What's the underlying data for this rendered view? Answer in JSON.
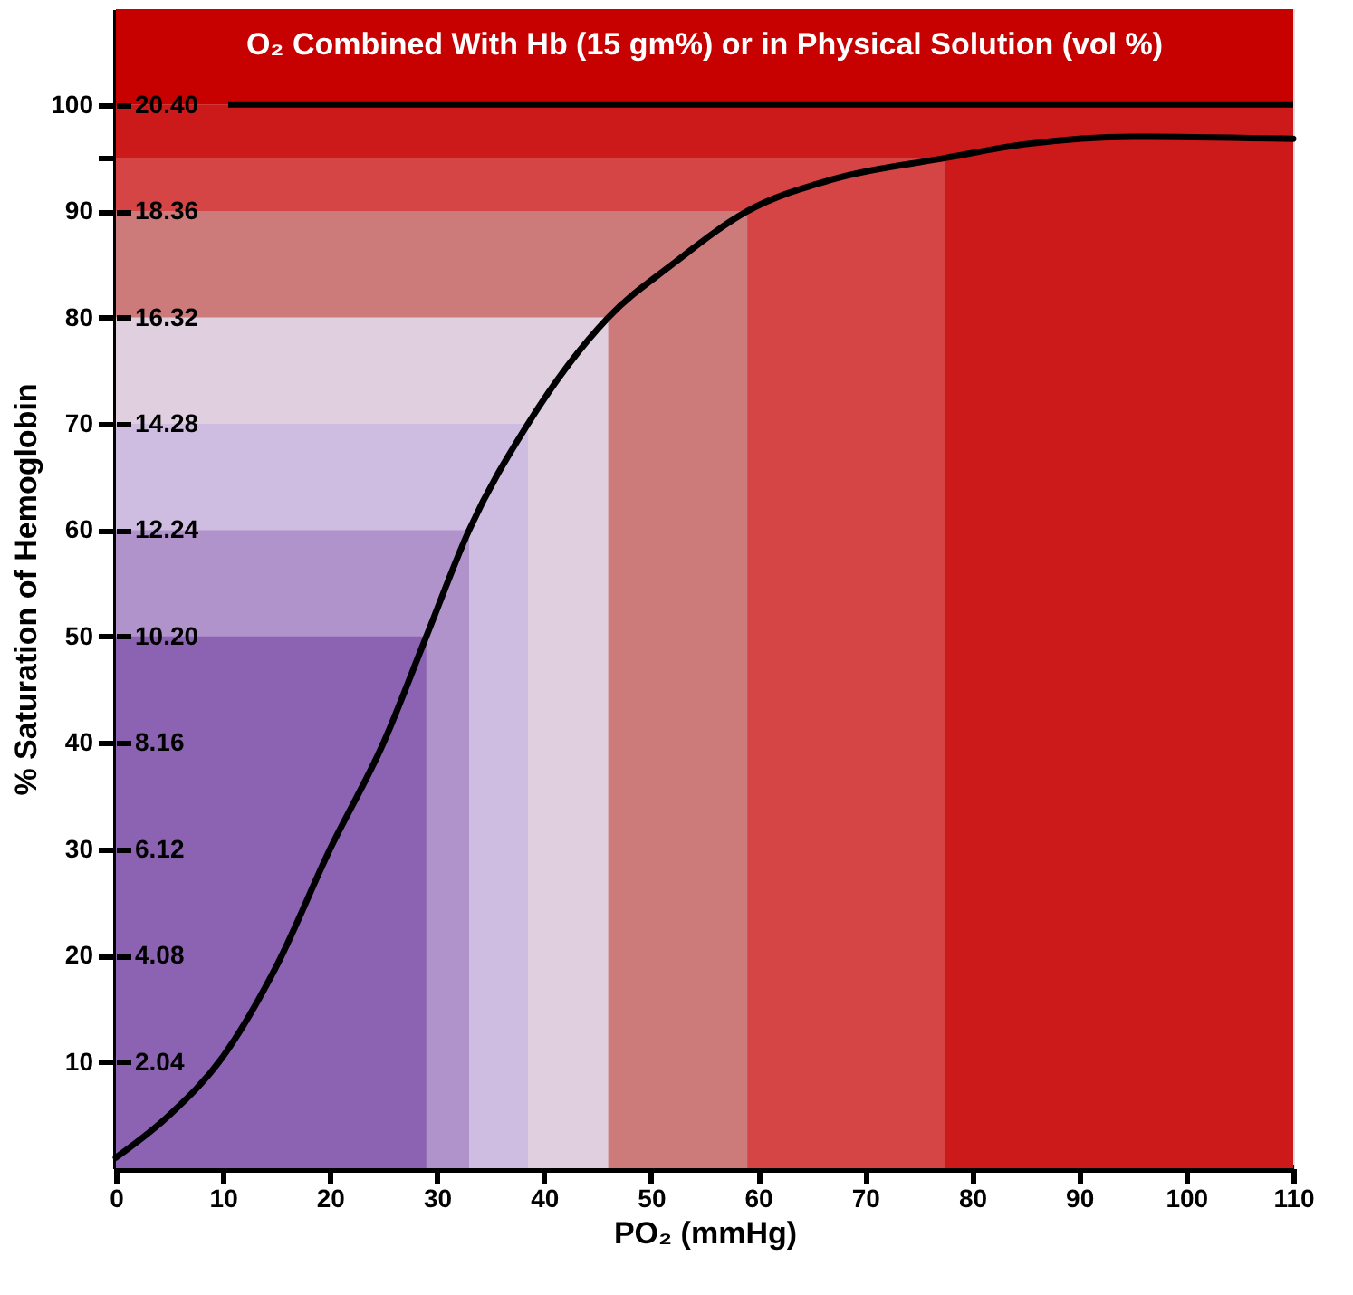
{
  "chart_data": {
    "type": "line",
    "title": "O₂ Combined With Hb (15 gm%) or in Physical Solution (vol %)",
    "xlabel": "PO₂ (mmHg)",
    "ylabel": "% Saturation of Hemoglobin",
    "xlim": [
      0,
      110
    ],
    "xticks": [
      0,
      10,
      20,
      30,
      40,
      50,
      60,
      70,
      80,
      90,
      100,
      110
    ],
    "ylim": [
      0,
      109
    ],
    "yticks": [
      10,
      20,
      30,
      40,
      50,
      60,
      70,
      80,
      90,
      {
        "value": 95,
        "label": null
      },
      100
    ],
    "y2lim": [
      0,
      22.236
    ],
    "y2ticks": [
      2.04,
      4.08,
      6.12,
      8.16,
      {
        "value": 10.2,
        "label": "10.20"
      },
      12.24,
      14.28,
      16.32,
      18.36,
      {
        "value": 20.4,
        "label": "20.40"
      }
    ],
    "grid": false,
    "marker": "none",
    "line_style": "solid",
    "bands": [
      {
        "axis": "y",
        "from": 100,
        "to": 109,
        "color": "#c70000"
      },
      {
        "axis": "y",
        "from": 0,
        "to": 100,
        "color": "#cc1a1a"
      }
    ],
    "ref_lines": [
      {
        "axis": "y",
        "value": 100,
        "color": "#000000"
      }
    ],
    "series": [
      {
        "type": "area",
        "color": "#d64545",
        "x": [
          0,
          77.5
        ],
        "values": [
          95,
          95
        ]
      },
      {
        "type": "area",
        "color": "#cc7a7a",
        "x": [
          0,
          59
        ],
        "values": [
          90,
          90
        ]
      },
      {
        "type": "area",
        "color": "#dfcfdf",
        "x": [
          0,
          46
        ],
        "values": [
          80,
          80
        ]
      },
      {
        "type": "area",
        "color": "#cebde0",
        "x": [
          0,
          38.5
        ],
        "values": [
          70,
          70
        ]
      },
      {
        "type": "area",
        "color": "#b193cb",
        "x": [
          0,
          33
        ],
        "values": [
          60,
          60
        ]
      },
      {
        "type": "area",
        "color": "#8b63b2",
        "x": [
          0,
          29
        ],
        "values": [
          50,
          50
        ]
      },
      {
        "color": "#000000",
        "x": [
          0,
          5,
          10,
          15,
          20,
          25,
          29,
          33,
          38.5,
          46,
          52,
          59,
          67,
          77.5,
          85,
          95,
          110
        ],
        "values": [
          1,
          5,
          10.5,
          19,
          30,
          40,
          50,
          60,
          70,
          80,
          85,
          90,
          93,
          95,
          96.3,
          97,
          96.8
        ]
      }
    ]
  }
}
